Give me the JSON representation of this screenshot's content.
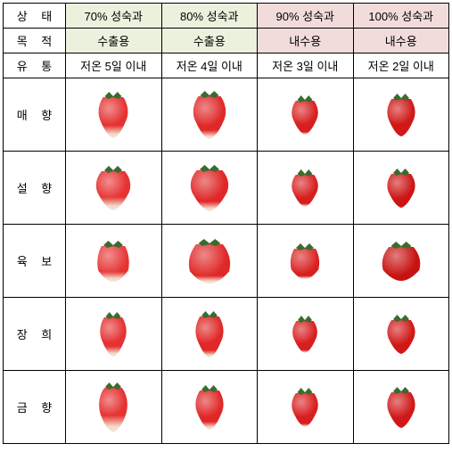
{
  "headers": {
    "state_label": "상 태",
    "purpose_label": "목 적",
    "distribution_label": "유 통",
    "maturity": [
      "70% 성숙과",
      "80% 성숙과",
      "90% 성숙과",
      "100% 성숙과"
    ],
    "purpose": [
      "수출용",
      "수출용",
      "내수용",
      "내수용"
    ],
    "distribution": [
      "저온 5일 이내",
      "저온 4일 이내",
      "저온 3일 이내",
      "저온 2일 이내"
    ],
    "bg_colors": [
      "#eaf1dd",
      "#eaf1dd",
      "#f2dcdb",
      "#f2dcdb"
    ]
  },
  "varieties": [
    {
      "name": "매 향",
      "fruits": [
        {
          "w": 38,
          "h": 52,
          "red_color": "#e63232",
          "white_base": 0.25,
          "shape": "conical",
          "leaf": true
        },
        {
          "w": 42,
          "h": 54,
          "red_color": "#e02828",
          "white_base": 0.15,
          "shape": "conical",
          "leaf": true
        },
        {
          "w": 34,
          "h": 44,
          "red_color": "#d81f1f",
          "white_base": 0.03,
          "shape": "conical",
          "leaf": true
        },
        {
          "w": 36,
          "h": 48,
          "red_color": "#d01818",
          "white_base": 0.0,
          "shape": "conical",
          "leaf": true
        }
      ]
    },
    {
      "name": "설 향",
      "fruits": [
        {
          "w": 40,
          "h": 50,
          "red_color": "#e63232",
          "white_base": 0.28,
          "shape": "conical-wide",
          "leaf": true
        },
        {
          "w": 44,
          "h": 52,
          "red_color": "#e02828",
          "white_base": 0.18,
          "shape": "conical-wide",
          "leaf": true
        },
        {
          "w": 34,
          "h": 42,
          "red_color": "#d81f1f",
          "white_base": 0.05,
          "shape": "conical",
          "leaf": true
        },
        {
          "w": 36,
          "h": 44,
          "red_color": "#cc1515",
          "white_base": 0.0,
          "shape": "conical",
          "leaf": true
        }
      ]
    },
    {
      "name": "육 보",
      "fruits": [
        {
          "w": 44,
          "h": 46,
          "red_color": "#e63232",
          "white_base": 0.22,
          "shape": "round",
          "leaf": true
        },
        {
          "w": 50,
          "h": 50,
          "red_color": "#e02828",
          "white_base": 0.14,
          "shape": "round-wide",
          "leaf": true
        },
        {
          "w": 40,
          "h": 40,
          "red_color": "#d81f1f",
          "white_base": 0.05,
          "shape": "round",
          "leaf": true
        },
        {
          "w": 46,
          "h": 44,
          "red_color": "#c81212",
          "white_base": 0.0,
          "shape": "round-wide",
          "leaf": true
        }
      ]
    },
    {
      "name": "장 희",
      "fruits": [
        {
          "w": 34,
          "h": 50,
          "red_color": "#e63232",
          "white_base": 0.2,
          "shape": "conical",
          "leaf": true
        },
        {
          "w": 36,
          "h": 52,
          "red_color": "#e02828",
          "white_base": 0.12,
          "shape": "conical",
          "leaf": true
        },
        {
          "w": 32,
          "h": 42,
          "red_color": "#d81f1f",
          "white_base": 0.04,
          "shape": "conical",
          "leaf": true
        },
        {
          "w": 36,
          "h": 44,
          "red_color": "#d01818",
          "white_base": 0.0,
          "shape": "conical",
          "leaf": true
        }
      ]
    },
    {
      "name": "금 향",
      "fruits": [
        {
          "w": 36,
          "h": 56,
          "red_color": "#e63232",
          "white_base": 0.32,
          "shape": "elongated",
          "leaf": true
        },
        {
          "w": 36,
          "h": 50,
          "red_color": "#e02828",
          "white_base": 0.15,
          "shape": "conical",
          "leaf": true
        },
        {
          "w": 34,
          "h": 44,
          "red_color": "#d81f1f",
          "white_base": 0.05,
          "shape": "conical",
          "leaf": true
        },
        {
          "w": 36,
          "h": 46,
          "red_color": "#d01818",
          "white_base": 0.0,
          "shape": "conical",
          "leaf": true
        }
      ]
    }
  ]
}
